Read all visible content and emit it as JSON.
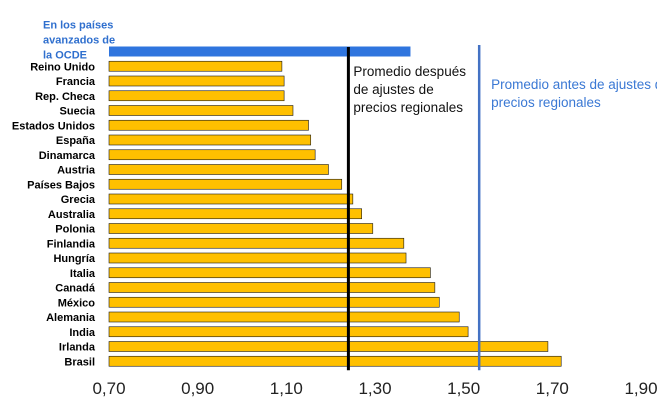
{
  "chart_data": {
    "type": "bar",
    "orientation": "horizontal",
    "highlight_category": "En los países avanzados de la OCDE",
    "highlight_label_lines": [
      "En los países",
      "avanzados de",
      "la OCDE"
    ],
    "categories": [
      "En los países avanzados de la OCDE",
      "Reino Unido",
      "Francia",
      "Rep. Checa",
      "Suecia",
      "Estados Unidos",
      "España",
      "Dinamarca",
      "Austria",
      "Países Bajos",
      "Grecia",
      "Australia",
      "Polonia",
      "Finlandia",
      "Hungría",
      "Italia",
      "Canadá",
      "México",
      "Alemania",
      "India",
      "Irlanda",
      "Brasil"
    ],
    "values": [
      1.38,
      1.09,
      1.095,
      1.095,
      1.115,
      1.15,
      1.155,
      1.165,
      1.195,
      1.225,
      1.25,
      1.27,
      1.295,
      1.365,
      1.37,
      1.425,
      1.435,
      1.445,
      1.49,
      1.51,
      1.69,
      1.72
    ],
    "xlim": [
      0.7,
      1.9
    ],
    "xticks": [
      "0,70",
      "0,90",
      "1,10",
      "1,30",
      "1,50",
      "1,70",
      "1,90"
    ],
    "xlabel": "",
    "ylabel": "",
    "title": "",
    "reference_lines": [
      {
        "value": 1.24,
        "label_lines": [
          "Promedio después",
          "de ajustes de",
          "precios regionales"
        ],
        "color": "#000000"
      },
      {
        "value": 1.535,
        "label_lines": [
          "Promedio antes de ajustes de",
          "precios regionales"
        ],
        "color": "#4472c4"
      }
    ],
    "colors": {
      "bar": "#ffc000",
      "highlight_bar": "#2f75de",
      "bar_stroke": "#1a1a1a",
      "after_line": "#000000",
      "before_line": "#4472c4",
      "highlight_label": "#2f6fce"
    },
    "grid": false,
    "legend": "none"
  }
}
